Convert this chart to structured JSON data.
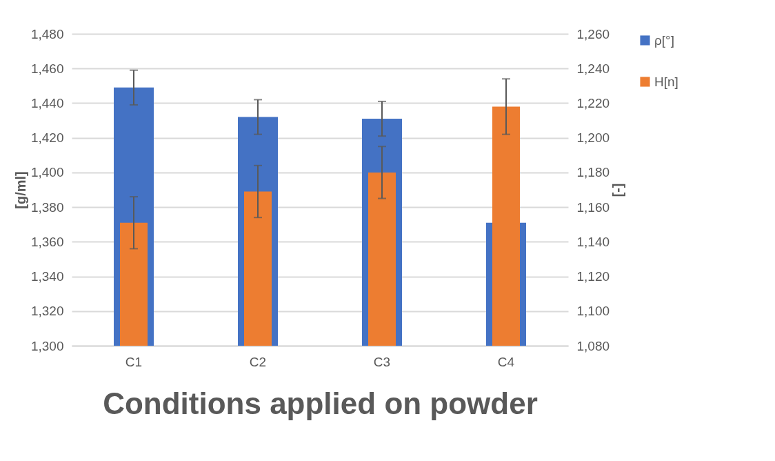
{
  "chart_data": {
    "type": "bar",
    "xlabel": "Conditions applied on powder",
    "ylabel": "[g/ml]",
    "y2label": "[-]",
    "categories": [
      "C1",
      "C2",
      "C3",
      "C4"
    ],
    "series": [
      {
        "name": "ρ[°]",
        "color": "#4472c4",
        "values": [
          1449,
          1432,
          1431,
          1371
        ],
        "errors": [
          10,
          10,
          10,
          null
        ]
      },
      {
        "name": "H[n]",
        "color": "#ed7d31",
        "axis": "y2",
        "values": [
          1151,
          1169,
          1180,
          1218
        ],
        "errors": [
          15,
          15,
          15,
          16
        ]
      }
    ],
    "ylim": [
      1300,
      1480
    ],
    "yticks": [
      {
        "value": 1300,
        "label": "1,300"
      },
      {
        "value": 1320,
        "label": "1,320"
      },
      {
        "value": 1340,
        "label": "1,340"
      },
      {
        "value": 1360,
        "label": "1,360"
      },
      {
        "value": 1380,
        "label": "1,380"
      },
      {
        "value": 1400,
        "label": "1,400"
      },
      {
        "value": 1420,
        "label": "1,420"
      },
      {
        "value": 1440,
        "label": "1,440"
      },
      {
        "value": 1460,
        "label": "1,460"
      },
      {
        "value": 1480,
        "label": "1,480"
      }
    ],
    "y2lim": [
      1080,
      1260
    ],
    "y2ticks": [
      {
        "value": 1080,
        "label": "1,080"
      },
      {
        "value": 1100,
        "label": "1,100"
      },
      {
        "value": 1120,
        "label": "1,120"
      },
      {
        "value": 1140,
        "label": "1,140"
      },
      {
        "value": 1160,
        "label": "1,160"
      },
      {
        "value": 1180,
        "label": "1,180"
      },
      {
        "value": 1200,
        "label": "1,200"
      },
      {
        "value": 1220,
        "label": "1,220"
      },
      {
        "value": 1240,
        "label": "1,240"
      },
      {
        "value": 1260,
        "label": "1,260"
      }
    ],
    "grid": "y",
    "legend": "right"
  }
}
